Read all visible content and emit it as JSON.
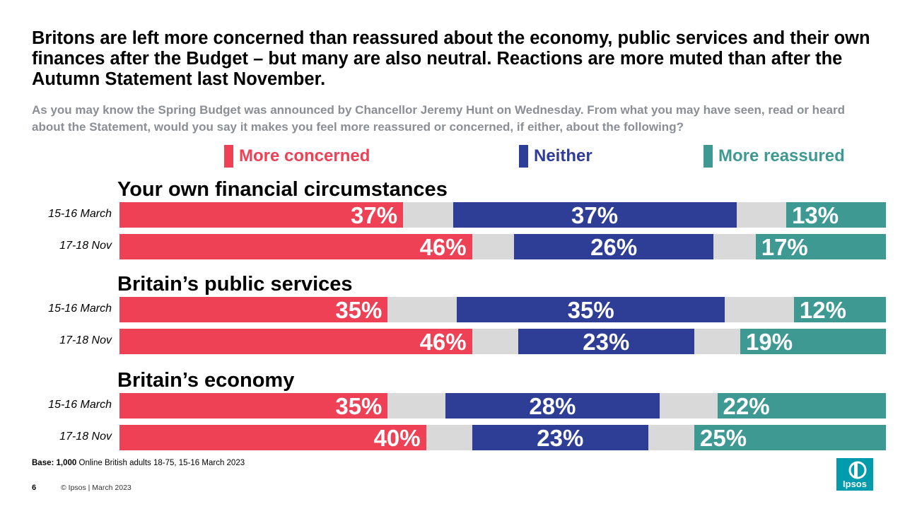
{
  "header": {
    "title": "Britons are left more concerned than reassured about the economy, public services and their own finances after the Budget – but many are also neutral.  Reactions are more muted than after the Autumn Statement last November.",
    "subtitle": "As you may know the Spring Budget was announced by Chancellor Jeremy Hunt on Wednesday. From what you may have seen, read or heard about the Statement, would you say it makes you feel more reassured or concerned, if either, about the following?"
  },
  "colors": {
    "concerned": "#ee4156",
    "neither": "#2e3d96",
    "reassured": "#3e9993",
    "gap": "#d9d9d9"
  },
  "chart_data": {
    "type": "bar",
    "orientation": "horizontal-stacked",
    "series": [
      {
        "name": "More concerned",
        "key": "concerned"
      },
      {
        "name": "Neither",
        "key": "neither"
      },
      {
        "name": "More reassured",
        "key": "reassured"
      }
    ],
    "groups": [
      {
        "title": "Your own financial circumstances",
        "rows": [
          {
            "label": "15-16 March",
            "concerned": 37,
            "neither": 37,
            "reassured": 13
          },
          {
            "label": "17-18 Nov",
            "concerned": 46,
            "neither": 26,
            "reassured": 17
          }
        ]
      },
      {
        "title": "Britain’s public services",
        "rows": [
          {
            "label": "15-16 March",
            "concerned": 35,
            "neither": 35,
            "reassured": 12
          },
          {
            "label": "17-18 Nov",
            "concerned": 46,
            "neither": 23,
            "reassured": 19
          }
        ]
      },
      {
        "title": "Britain’s economy",
        "rows": [
          {
            "label": "15-16 March",
            "concerned": 35,
            "neither": 28,
            "reassured": 22
          },
          {
            "label": "17-18 Nov",
            "concerned": 40,
            "neither": 23,
            "reassured": 25
          }
        ]
      }
    ]
  },
  "footer": {
    "base_label": "Base:",
    "base_count": "1,000",
    "base_rest": " Online British adults 18-75, 15-16 March 2023",
    "page_number": "6",
    "copyright": "© Ipsos | March 2023",
    "logo_text": "Ipsos"
  }
}
